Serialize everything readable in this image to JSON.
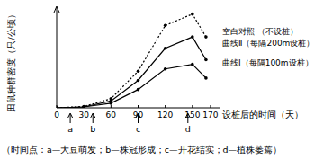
{
  "chart_data": {
    "type": "line",
    "y_label": "田鼠种群密度（只/公顷）",
    "x_label": "设桩后的时间（天）",
    "caption": "（时间点：a—大豆萌发；b—株冠形成；c—开花结实；d—植株萎蔫）",
    "x": [
      0,
      30,
      60,
      90,
      120,
      150,
      165
    ],
    "xlim": [
      0,
      180
    ],
    "xticks": [
      0,
      30,
      60,
      90,
      120,
      150,
      170
    ],
    "ylim": [
      0,
      22
    ],
    "tick_labels": "x",
    "series": [
      {
        "name": "空白对照 （不设桩）",
        "color": "#000000",
        "line_style": "dotted",
        "marker": "circle",
        "values": [
          0,
          0.3,
          2,
          8,
          18,
          20.5,
          15.5
        ]
      },
      {
        "name": "曲线Ⅱ（每隔200m设桩）",
        "color": "#000000",
        "line_style": "solid",
        "marker": "circle",
        "values": [
          0,
          0.2,
          1.5,
          6,
          13,
          15.5,
          10.5
        ]
      },
      {
        "name": "曲线Ⅰ（每隔100m设桩）",
        "color": "#000000",
        "line_style": "solid",
        "marker": "circle",
        "values": [
          0,
          0.2,
          1,
          4,
          8.5,
          9.5,
          6.5
        ]
      }
    ],
    "annotations": [
      {
        "text": "a",
        "x": 15
      },
      {
        "text": "b",
        "x": 40
      },
      {
        "text": "c",
        "x": 90
      },
      {
        "text": "d",
        "x": 145
      }
    ]
  }
}
